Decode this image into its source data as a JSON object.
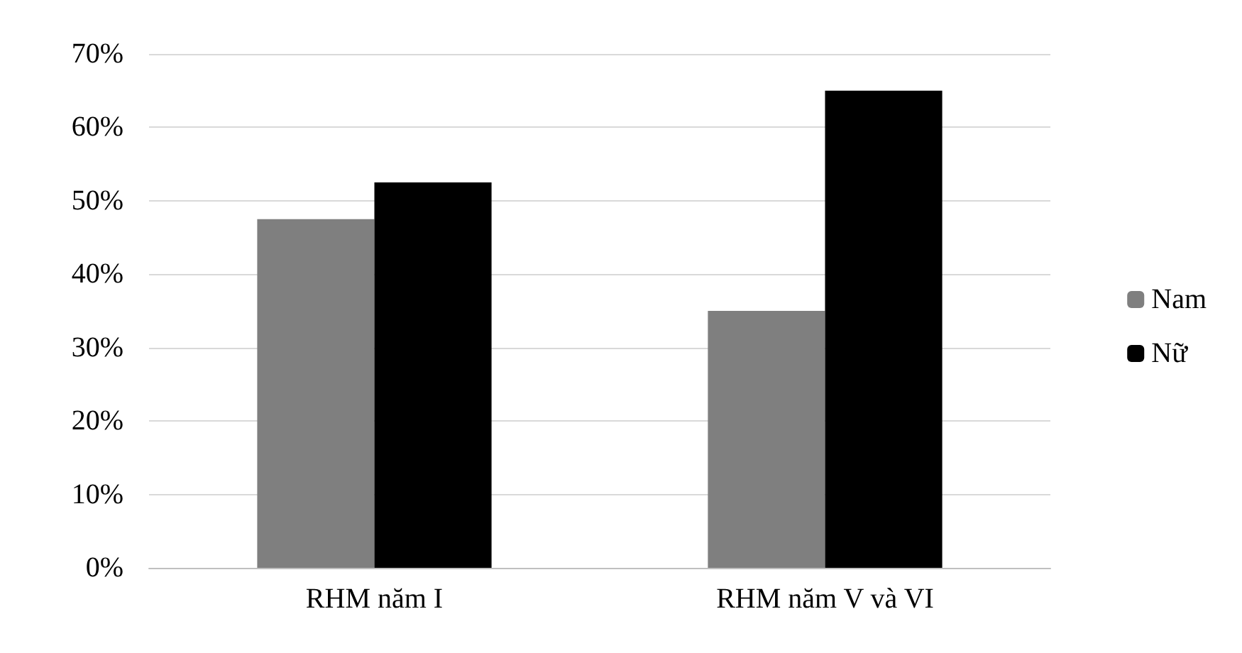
{
  "chart_data": {
    "type": "bar",
    "categories": [
      "RHM năm I",
      "RHM năm V và VI"
    ],
    "series": [
      {
        "name": "Nam",
        "color": "#7f7f7f",
        "values": [
          47.5,
          35
        ]
      },
      {
        "name": "Nữ",
        "color": "#000000",
        "values": [
          52.5,
          65
        ]
      }
    ],
    "ylim": [
      0,
      70
    ],
    "yticks": [
      {
        "value": 0,
        "label": "0%"
      },
      {
        "value": 10,
        "label": "10%"
      },
      {
        "value": 20,
        "label": "20%"
      },
      {
        "value": 30,
        "label": "30%"
      },
      {
        "value": 40,
        "label": "40%"
      },
      {
        "value": 50,
        "label": "50%"
      },
      {
        "value": 60,
        "label": "60%"
      },
      {
        "value": 70,
        "label": "70%"
      }
    ],
    "grid": "y",
    "legend": "right"
  }
}
